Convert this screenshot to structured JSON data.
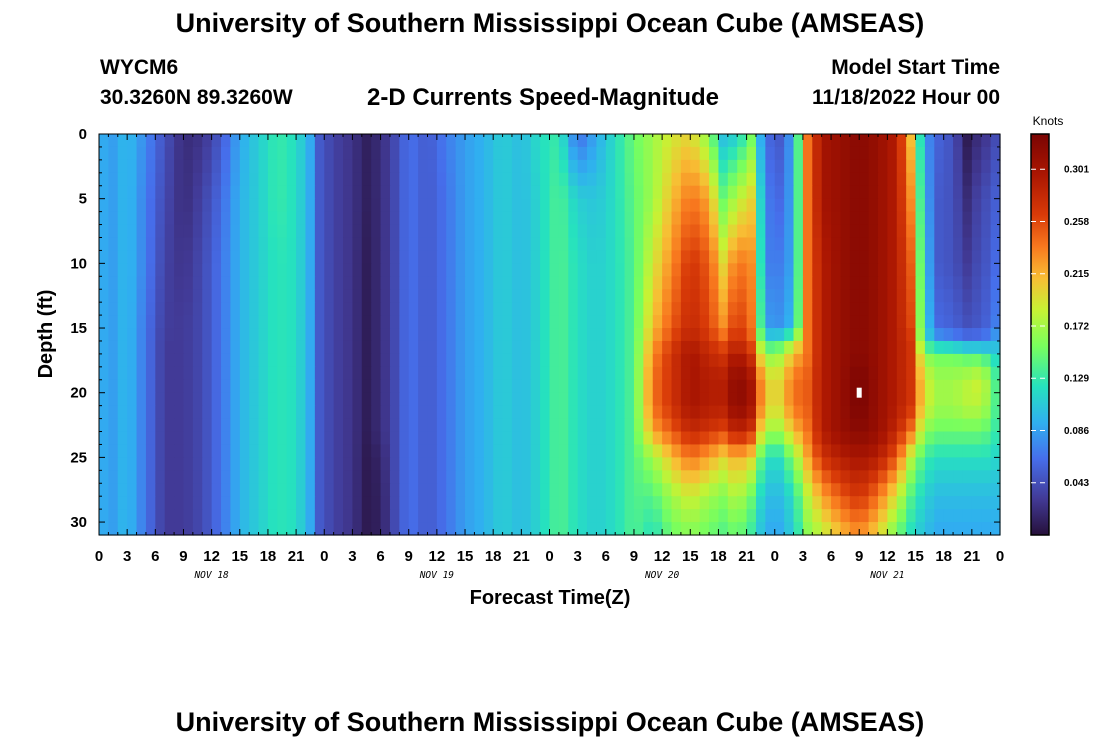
{
  "header": {
    "title": "University of Southern Mississippi Ocean Cube (AMSEAS)",
    "station_id": "WYCM6",
    "station_coords": "30.3260N  89.3260W",
    "plot_title": "2-D Currents Speed-Magnitude",
    "model_start_label": "Model Start Time",
    "model_start_value": "11/18/2022 Hour 00"
  },
  "footer": {
    "title": "University of Southern Mississippi Ocean Cube (AMSEAS)"
  },
  "chart_data": {
    "type": "heatmap",
    "title": "2-D Currents Speed-Magnitude",
    "xlabel": "Forecast Time(Z)",
    "ylabel": "Depth (ft)",
    "colorbar_label": "Knots",
    "x_hours_range": [
      0,
      96
    ],
    "x_ticks": [
      {
        "h": 0,
        "label": "0"
      },
      {
        "h": 3,
        "label": "3"
      },
      {
        "h": 6,
        "label": "6"
      },
      {
        "h": 9,
        "label": "9"
      },
      {
        "h": 12,
        "label": "12"
      },
      {
        "h": 15,
        "label": "15"
      },
      {
        "h": 18,
        "label": "18"
      },
      {
        "h": 21,
        "label": "21"
      },
      {
        "h": 24,
        "label": "0"
      },
      {
        "h": 27,
        "label": "3"
      },
      {
        "h": 30,
        "label": "6"
      },
      {
        "h": 33,
        "label": "9"
      },
      {
        "h": 36,
        "label": "12"
      },
      {
        "h": 39,
        "label": "15"
      },
      {
        "h": 42,
        "label": "18"
      },
      {
        "h": 45,
        "label": "21"
      },
      {
        "h": 48,
        "label": "0"
      },
      {
        "h": 51,
        "label": "3"
      },
      {
        "h": 54,
        "label": "6"
      },
      {
        "h": 57,
        "label": "9"
      },
      {
        "h": 60,
        "label": "12"
      },
      {
        "h": 63,
        "label": "15"
      },
      {
        "h": 66,
        "label": "18"
      },
      {
        "h": 69,
        "label": "21"
      },
      {
        "h": 72,
        "label": "0"
      },
      {
        "h": 75,
        "label": "3"
      },
      {
        "h": 78,
        "label": "6"
      },
      {
        "h": 81,
        "label": "9"
      },
      {
        "h": 84,
        "label": "12"
      },
      {
        "h": 87,
        "label": "15"
      },
      {
        "h": 90,
        "label": "18"
      },
      {
        "h": 93,
        "label": "21"
      },
      {
        "h": 96,
        "label": "0"
      }
    ],
    "day_labels": [
      {
        "h": 12,
        "label": "NOV 18"
      },
      {
        "h": 36,
        "label": "NOV 19"
      },
      {
        "h": 60,
        "label": "NOV 20"
      },
      {
        "h": 84,
        "label": "NOV 21"
      }
    ],
    "depth_range": [
      0,
      31
    ],
    "y_ticks": [
      0,
      5,
      10,
      15,
      20,
      25,
      30
    ],
    "colorbar_range": [
      0,
      0.33
    ],
    "colorbar_ticks": [
      0.043,
      0.086,
      0.129,
      0.172,
      0.215,
      0.258,
      0.301
    ],
    "colorbar_tick_labels": [
      "0.043",
      "0.086",
      "0.129",
      "0.172",
      "0.215",
      "0.258",
      "0.301"
    ],
    "depth_profile_depths": [
      0,
      5,
      10,
      15,
      16,
      17,
      19,
      21,
      23,
      25,
      28,
      31
    ],
    "speed_profiles": [
      {
        "h": 0,
        "knots": [
          0.1,
          0.1,
          0.1,
          0.1,
          0.1,
          0.1,
          0.1,
          0.1,
          0.1,
          0.1,
          0.1,
          0.1
        ]
      },
      {
        "h": 1,
        "knots": [
          0.08,
          0.08,
          0.08,
          0.08,
          0.08,
          0.08,
          0.08,
          0.08,
          0.08,
          0.08,
          0.08,
          0.08
        ]
      },
      {
        "h": 3,
        "knots": [
          0.1,
          0.1,
          0.1,
          0.1,
          0.1,
          0.1,
          0.1,
          0.1,
          0.1,
          0.1,
          0.1,
          0.1
        ]
      },
      {
        "h": 5,
        "knots": [
          0.075,
          0.07,
          0.07,
          0.065,
          0.065,
          0.065,
          0.065,
          0.065,
          0.065,
          0.065,
          0.065,
          0.065
        ]
      },
      {
        "h": 7,
        "knots": [
          0.045,
          0.04,
          0.035,
          0.032,
          0.03,
          0.03,
          0.03,
          0.03,
          0.03,
          0.03,
          0.03,
          0.03
        ]
      },
      {
        "h": 9,
        "knots": [
          0.02,
          0.02,
          0.025,
          0.03,
          0.03,
          0.03,
          0.03,
          0.03,
          0.03,
          0.03,
          0.03,
          0.03
        ]
      },
      {
        "h": 11,
        "knots": [
          0.025,
          0.035,
          0.04,
          0.04,
          0.04,
          0.04,
          0.04,
          0.04,
          0.04,
          0.04,
          0.04,
          0.04
        ]
      },
      {
        "h": 13,
        "knots": [
          0.05,
          0.06,
          0.065,
          0.065,
          0.065,
          0.065,
          0.065,
          0.065,
          0.065,
          0.065,
          0.065,
          0.065
        ]
      },
      {
        "h": 15,
        "knots": [
          0.09,
          0.095,
          0.095,
          0.095,
          0.095,
          0.095,
          0.095,
          0.095,
          0.095,
          0.095,
          0.095,
          0.095
        ]
      },
      {
        "h": 17,
        "knots": [
          0.11,
          0.11,
          0.11,
          0.11,
          0.11,
          0.11,
          0.11,
          0.11,
          0.11,
          0.11,
          0.11,
          0.11
        ]
      },
      {
        "h": 19,
        "knots": [
          0.13,
          0.13,
          0.125,
          0.125,
          0.125,
          0.125,
          0.125,
          0.125,
          0.125,
          0.125,
          0.125,
          0.125
        ]
      },
      {
        "h": 21,
        "knots": [
          0.12,
          0.12,
          0.12,
          0.12,
          0.12,
          0.12,
          0.12,
          0.12,
          0.12,
          0.12,
          0.12,
          0.12
        ]
      },
      {
        "h": 22.5,
        "knots": [
          0.09,
          0.09,
          0.09,
          0.09,
          0.09,
          0.09,
          0.09,
          0.09,
          0.09,
          0.09,
          0.09,
          0.09
        ]
      },
      {
        "h": 23.5,
        "knots": [
          0.05,
          0.05,
          0.05,
          0.05,
          0.05,
          0.05,
          0.05,
          0.05,
          0.05,
          0.05,
          0.05,
          0.05
        ]
      },
      {
        "h": 25,
        "knots": [
          0.035,
          0.035,
          0.035,
          0.035,
          0.035,
          0.035,
          0.035,
          0.035,
          0.035,
          0.035,
          0.035,
          0.035
        ]
      },
      {
        "h": 27,
        "knots": [
          0.025,
          0.025,
          0.025,
          0.025,
          0.025,
          0.025,
          0.025,
          0.025,
          0.025,
          0.025,
          0.025,
          0.025
        ]
      },
      {
        "h": 28.5,
        "knots": [
          0.012,
          0.012,
          0.01,
          0.01,
          0.01,
          0.01,
          0.01,
          0.01,
          0.01,
          0.008,
          0.008,
          0.008
        ]
      },
      {
        "h": 30,
        "knots": [
          0.02,
          0.02,
          0.02,
          0.02,
          0.02,
          0.02,
          0.02,
          0.02,
          0.02,
          0.015,
          0.012,
          0.012
        ]
      },
      {
        "h": 31.5,
        "knots": [
          0.04,
          0.04,
          0.04,
          0.04,
          0.04,
          0.04,
          0.04,
          0.04,
          0.04,
          0.04,
          0.04,
          0.04
        ]
      },
      {
        "h": 33,
        "knots": [
          0.065,
          0.065,
          0.065,
          0.065,
          0.065,
          0.065,
          0.065,
          0.065,
          0.065,
          0.065,
          0.065,
          0.065
        ]
      },
      {
        "h": 35,
        "knots": [
          0.05,
          0.05,
          0.05,
          0.05,
          0.05,
          0.05,
          0.05,
          0.05,
          0.05,
          0.05,
          0.05,
          0.05
        ]
      },
      {
        "h": 37,
        "knots": [
          0.07,
          0.065,
          0.065,
          0.065,
          0.065,
          0.065,
          0.065,
          0.065,
          0.065,
          0.065,
          0.065,
          0.065
        ]
      },
      {
        "h": 39,
        "knots": [
          0.085,
          0.085,
          0.085,
          0.085,
          0.085,
          0.085,
          0.085,
          0.085,
          0.085,
          0.085,
          0.085,
          0.085
        ]
      },
      {
        "h": 41,
        "knots": [
          0.095,
          0.095,
          0.095,
          0.095,
          0.095,
          0.095,
          0.095,
          0.095,
          0.095,
          0.095,
          0.095,
          0.095
        ]
      },
      {
        "h": 43,
        "knots": [
          0.11,
          0.11,
          0.11,
          0.11,
          0.11,
          0.11,
          0.11,
          0.11,
          0.11,
          0.11,
          0.11,
          0.11
        ]
      },
      {
        "h": 45,
        "knots": [
          0.1,
          0.1,
          0.1,
          0.1,
          0.1,
          0.1,
          0.1,
          0.1,
          0.1,
          0.1,
          0.1,
          0.1
        ]
      },
      {
        "h": 47,
        "knots": [
          0.12,
          0.115,
          0.115,
          0.115,
          0.115,
          0.115,
          0.115,
          0.115,
          0.115,
          0.115,
          0.115,
          0.115
        ]
      },
      {
        "h": 49,
        "knots": [
          0.13,
          0.14,
          0.14,
          0.14,
          0.14,
          0.14,
          0.14,
          0.14,
          0.14,
          0.14,
          0.14,
          0.14
        ]
      },
      {
        "h": 51,
        "knots": [
          0.06,
          0.11,
          0.12,
          0.12,
          0.12,
          0.12,
          0.12,
          0.12,
          0.12,
          0.12,
          0.12,
          0.12
        ]
      },
      {
        "h": 53,
        "knots": [
          0.09,
          0.105,
          0.11,
          0.11,
          0.11,
          0.11,
          0.11,
          0.11,
          0.11,
          0.11,
          0.11,
          0.11
        ]
      },
      {
        "h": 55,
        "knots": [
          0.12,
          0.12,
          0.12,
          0.12,
          0.12,
          0.12,
          0.12,
          0.12,
          0.12,
          0.12,
          0.12,
          0.12
        ]
      },
      {
        "h": 57,
        "knots": [
          0.15,
          0.145,
          0.14,
          0.14,
          0.14,
          0.14,
          0.14,
          0.14,
          0.14,
          0.14,
          0.14,
          0.14
        ]
      },
      {
        "h": 59,
        "knots": [
          0.17,
          0.17,
          0.19,
          0.21,
          0.22,
          0.23,
          0.24,
          0.24,
          0.22,
          0.17,
          0.14,
          0.12
        ]
      },
      {
        "h": 61,
        "knots": [
          0.19,
          0.21,
          0.23,
          0.25,
          0.26,
          0.27,
          0.27,
          0.27,
          0.25,
          0.21,
          0.17,
          0.15
        ]
      },
      {
        "h": 63,
        "knots": [
          0.2,
          0.24,
          0.27,
          0.28,
          0.29,
          0.3,
          0.3,
          0.3,
          0.28,
          0.24,
          0.19,
          0.16
        ]
      },
      {
        "h": 65,
        "knots": [
          0.16,
          0.22,
          0.25,
          0.26,
          0.27,
          0.28,
          0.29,
          0.29,
          0.27,
          0.22,
          0.17,
          0.15
        ]
      },
      {
        "h": 66.5,
        "knots": [
          0.1,
          0.15,
          0.2,
          0.23,
          0.25,
          0.27,
          0.29,
          0.29,
          0.26,
          0.2,
          0.16,
          0.14
        ]
      },
      {
        "h": 68,
        "knots": [
          0.11,
          0.18,
          0.24,
          0.27,
          0.28,
          0.3,
          0.32,
          0.32,
          0.29,
          0.22,
          0.18,
          0.15
        ]
      },
      {
        "h": 69.5,
        "knots": [
          0.15,
          0.2,
          0.23,
          0.24,
          0.25,
          0.27,
          0.3,
          0.3,
          0.27,
          0.2,
          0.15,
          0.13
        ]
      },
      {
        "h": 71,
        "knots": [
          0.06,
          0.07,
          0.07,
          0.085,
          0.12,
          0.16,
          0.2,
          0.2,
          0.17,
          0.12,
          0.1,
          0.09
        ]
      },
      {
        "h": 72.5,
        "knots": [
          0.05,
          0.06,
          0.07,
          0.08,
          0.13,
          0.17,
          0.2,
          0.2,
          0.17,
          0.12,
          0.1,
          0.09
        ]
      },
      {
        "h": 74,
        "knots": [
          0.09,
          0.09,
          0.09,
          0.1,
          0.17,
          0.21,
          0.24,
          0.24,
          0.21,
          0.16,
          0.12,
          0.11
        ]
      },
      {
        "h": 75.5,
        "knots": [
          0.24,
          0.24,
          0.24,
          0.24,
          0.24,
          0.24,
          0.25,
          0.25,
          0.24,
          0.22,
          0.18,
          0.16
        ]
      },
      {
        "h": 77,
        "knots": [
          0.3,
          0.3,
          0.29,
          0.29,
          0.29,
          0.29,
          0.29,
          0.29,
          0.29,
          0.27,
          0.22,
          0.18
        ]
      },
      {
        "h": 79,
        "knots": [
          0.31,
          0.31,
          0.31,
          0.31,
          0.31,
          0.31,
          0.31,
          0.31,
          0.31,
          0.29,
          0.25,
          0.21
        ]
      },
      {
        "h": 81,
        "knots": [
          0.32,
          0.32,
          0.32,
          0.32,
          0.32,
          0.32,
          0.33,
          0.33,
          0.32,
          0.3,
          0.27,
          0.23
        ]
      },
      {
        "h": 83,
        "knots": [
          0.31,
          0.31,
          0.31,
          0.31,
          0.31,
          0.31,
          0.31,
          0.31,
          0.31,
          0.29,
          0.24,
          0.2
        ]
      },
      {
        "h": 85,
        "knots": [
          0.29,
          0.29,
          0.29,
          0.29,
          0.29,
          0.29,
          0.29,
          0.29,
          0.28,
          0.25,
          0.19,
          0.15
        ]
      },
      {
        "h": 86.5,
        "knots": [
          0.21,
          0.23,
          0.25,
          0.26,
          0.27,
          0.27,
          0.27,
          0.27,
          0.24,
          0.18,
          0.14,
          0.12
        ]
      },
      {
        "h": 88,
        "knots": [
          0.08,
          0.09,
          0.1,
          0.11,
          0.12,
          0.16,
          0.19,
          0.19,
          0.16,
          0.13,
          0.11,
          0.1
        ]
      },
      {
        "h": 89.5,
        "knots": [
          0.055,
          0.05,
          0.05,
          0.06,
          0.09,
          0.15,
          0.17,
          0.17,
          0.15,
          0.12,
          0.1,
          0.09
        ]
      },
      {
        "h": 91,
        "knots": [
          0.045,
          0.045,
          0.045,
          0.055,
          0.08,
          0.15,
          0.17,
          0.17,
          0.15,
          0.12,
          0.1,
          0.09
        ]
      },
      {
        "h": 92.5,
        "knots": [
          0.008,
          0.02,
          0.03,
          0.045,
          0.07,
          0.14,
          0.18,
          0.18,
          0.15,
          0.12,
          0.1,
          0.09
        ]
      },
      {
        "h": 94,
        "knots": [
          0.025,
          0.04,
          0.045,
          0.05,
          0.07,
          0.14,
          0.19,
          0.18,
          0.15,
          0.12,
          0.1,
          0.09
        ]
      },
      {
        "h": 95,
        "knots": [
          0.03,
          0.045,
          0.05,
          0.06,
          0.08,
          0.12,
          0.16,
          0.16,
          0.14,
          0.12,
          0.1,
          0.09
        ]
      },
      {
        "h": 96,
        "knots": [
          0.05,
          0.06,
          0.07,
          0.08,
          0.1,
          0.11,
          0.12,
          0.12,
          0.12,
          0.11,
          0.1,
          0.09
        ]
      }
    ],
    "marker": {
      "h": 81,
      "depth": 20,
      "color": "#ffffff"
    }
  }
}
